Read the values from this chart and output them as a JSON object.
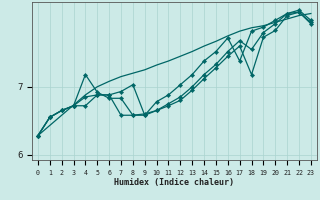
{
  "title": "",
  "xlabel": "Humidex (Indice chaleur)",
  "bg_color": "#cceae7",
  "line_color": "#006666",
  "grid_color": "#aad4d0",
  "x_values": [
    0,
    1,
    2,
    3,
    4,
    5,
    6,
    7,
    8,
    9,
    10,
    11,
    12,
    13,
    14,
    15,
    16,
    17,
    18,
    19,
    20,
    21,
    22,
    23
  ],
  "line1": [
    6.28,
    6.55,
    6.65,
    6.72,
    7.18,
    6.92,
    6.83,
    6.83,
    6.58,
    6.6,
    6.65,
    6.72,
    6.8,
    6.95,
    7.12,
    7.28,
    7.45,
    7.6,
    7.18,
    7.73,
    7.83,
    8.05,
    8.1,
    7.93
  ],
  "line2": [
    6.28,
    6.55,
    6.65,
    6.72,
    6.85,
    6.88,
    6.88,
    6.58,
    6.58,
    6.58,
    6.65,
    6.75,
    6.85,
    7.0,
    7.18,
    7.33,
    7.52,
    7.68,
    7.55,
    7.8,
    7.93,
    8.08,
    8.1,
    7.95
  ],
  "line3": [
    6.28,
    6.55,
    6.65,
    6.72,
    6.72,
    6.88,
    6.88,
    6.93,
    7.03,
    6.58,
    6.78,
    6.88,
    7.03,
    7.18,
    7.38,
    7.52,
    7.72,
    7.38,
    7.82,
    7.88,
    7.98,
    8.08,
    8.13,
    7.98
  ],
  "trend": [
    6.28,
    6.43,
    6.58,
    6.73,
    6.88,
    7.0,
    7.08,
    7.15,
    7.2,
    7.25,
    7.32,
    7.38,
    7.45,
    7.52,
    7.6,
    7.67,
    7.75,
    7.82,
    7.87,
    7.9,
    7.95,
    8.0,
    8.05,
    8.08
  ],
  "ylim": [
    5.92,
    8.25
  ],
  "yticks": [
    6,
    7
  ],
  "xlim": [
    -0.5,
    23.5
  ],
  "xticks": [
    0,
    1,
    2,
    3,
    4,
    5,
    6,
    7,
    8,
    9,
    10,
    11,
    12,
    13,
    14,
    15,
    16,
    17,
    18,
    19,
    20,
    21,
    22,
    23
  ],
  "marker_size": 2.2,
  "line_width": 0.9
}
